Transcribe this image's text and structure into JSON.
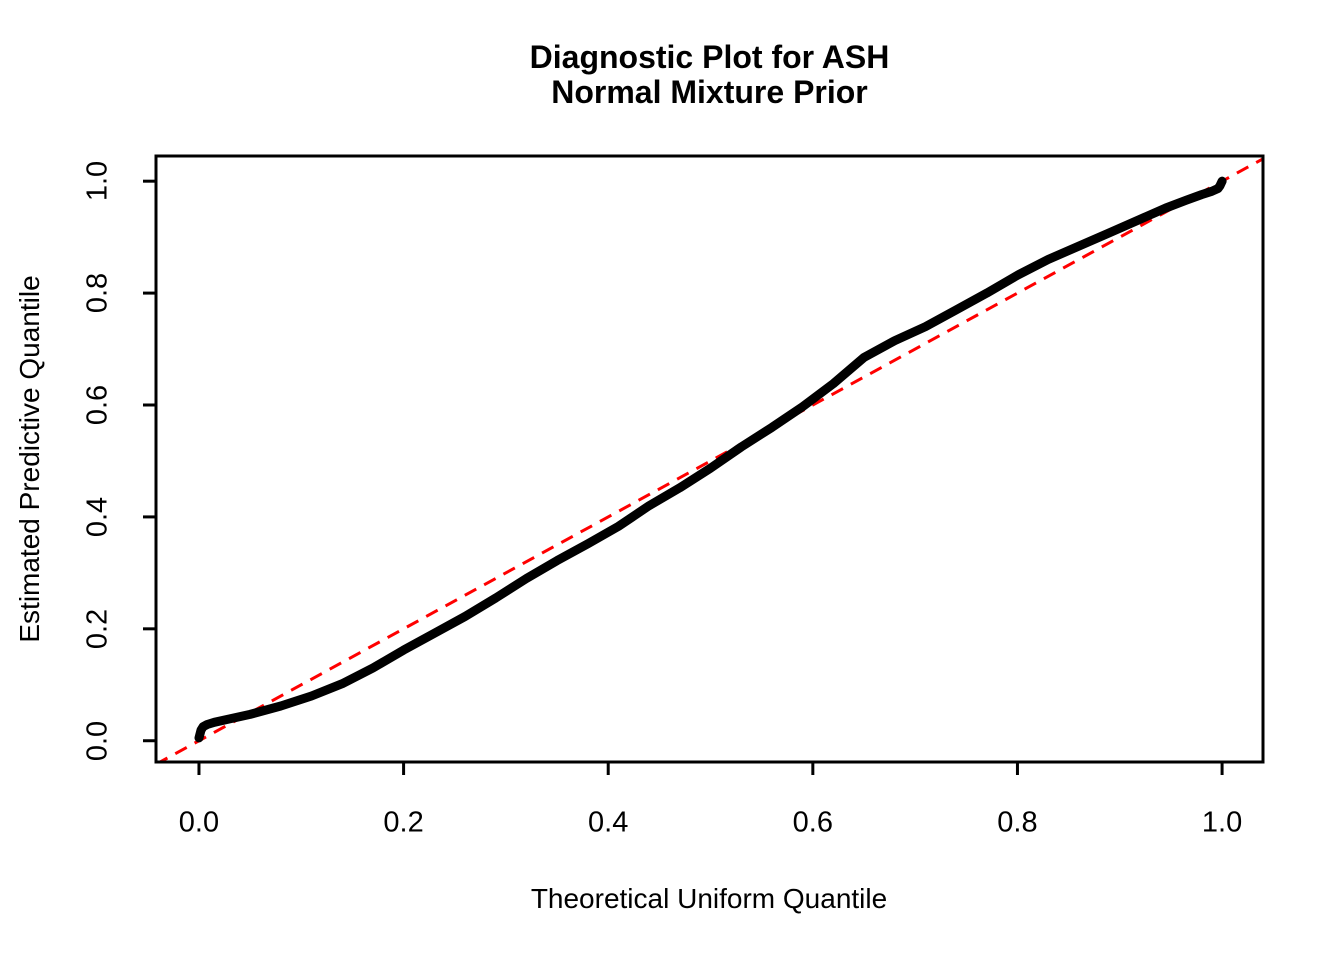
{
  "chart_data": {
    "type": "scatter",
    "title_lines": [
      "Diagnostic Plot for ASH",
      "Normal Mixture Prior"
    ],
    "xlabel": "Theoretical Uniform Quantile",
    "ylabel": "Estimated Predictive Quantile",
    "x_tick_values": [
      0.0,
      0.2,
      0.4,
      0.6,
      0.8,
      1.0
    ],
    "x_tick_labels": [
      "0.0",
      "0.2",
      "0.4",
      "0.6",
      "0.8",
      "1.0"
    ],
    "y_tick_values": [
      0.0,
      0.2,
      0.4,
      0.6,
      0.8,
      1.0
    ],
    "y_tick_labels": [
      "0.0",
      "0.2",
      "0.4",
      "0.6",
      "0.8",
      "1.0"
    ],
    "xlim": [
      -0.042,
      1.04
    ],
    "ylim": [
      -0.038,
      1.045
    ],
    "grid": false,
    "legend": null,
    "colors": {
      "curve": "#000000",
      "reference_line": "#FF0000",
      "axis": "#000000",
      "background": "#FFFFFF"
    },
    "series": [
      {
        "name": "estimated-predictive-quantiles",
        "type": "points-curve",
        "color": "#000000",
        "points": [
          [
            0.0,
            0.005
          ],
          [
            0.001,
            0.012
          ],
          [
            0.002,
            0.019
          ],
          [
            0.004,
            0.025
          ],
          [
            0.008,
            0.029
          ],
          [
            0.015,
            0.033
          ],
          [
            0.03,
            0.039
          ],
          [
            0.05,
            0.047
          ],
          [
            0.08,
            0.062
          ],
          [
            0.11,
            0.08
          ],
          [
            0.14,
            0.102
          ],
          [
            0.17,
            0.13
          ],
          [
            0.2,
            0.162
          ],
          [
            0.23,
            0.192
          ],
          [
            0.26,
            0.222
          ],
          [
            0.29,
            0.255
          ],
          [
            0.32,
            0.29
          ],
          [
            0.35,
            0.322
          ],
          [
            0.38,
            0.352
          ],
          [
            0.41,
            0.383
          ],
          [
            0.44,
            0.42
          ],
          [
            0.47,
            0.452
          ],
          [
            0.5,
            0.487
          ],
          [
            0.53,
            0.525
          ],
          [
            0.56,
            0.56
          ],
          [
            0.59,
            0.597
          ],
          [
            0.62,
            0.638
          ],
          [
            0.65,
            0.685
          ],
          [
            0.68,
            0.715
          ],
          [
            0.71,
            0.74
          ],
          [
            0.74,
            0.77
          ],
          [
            0.77,
            0.8
          ],
          [
            0.8,
            0.832
          ],
          [
            0.83,
            0.86
          ],
          [
            0.86,
            0.884
          ],
          [
            0.89,
            0.908
          ],
          [
            0.92,
            0.932
          ],
          [
            0.945,
            0.952
          ],
          [
            0.965,
            0.966
          ],
          [
            0.98,
            0.976
          ],
          [
            0.99,
            0.982
          ],
          [
            0.996,
            0.987
          ],
          [
            0.998,
            0.992
          ],
          [
            1.0,
            1.0
          ]
        ]
      },
      {
        "name": "reference-line-y-equals-x",
        "type": "line",
        "style": "dashed",
        "color": "#FF0000",
        "from": [
          -0.042,
          -0.042
        ],
        "to": [
          1.04,
          1.04
        ]
      }
    ]
  }
}
